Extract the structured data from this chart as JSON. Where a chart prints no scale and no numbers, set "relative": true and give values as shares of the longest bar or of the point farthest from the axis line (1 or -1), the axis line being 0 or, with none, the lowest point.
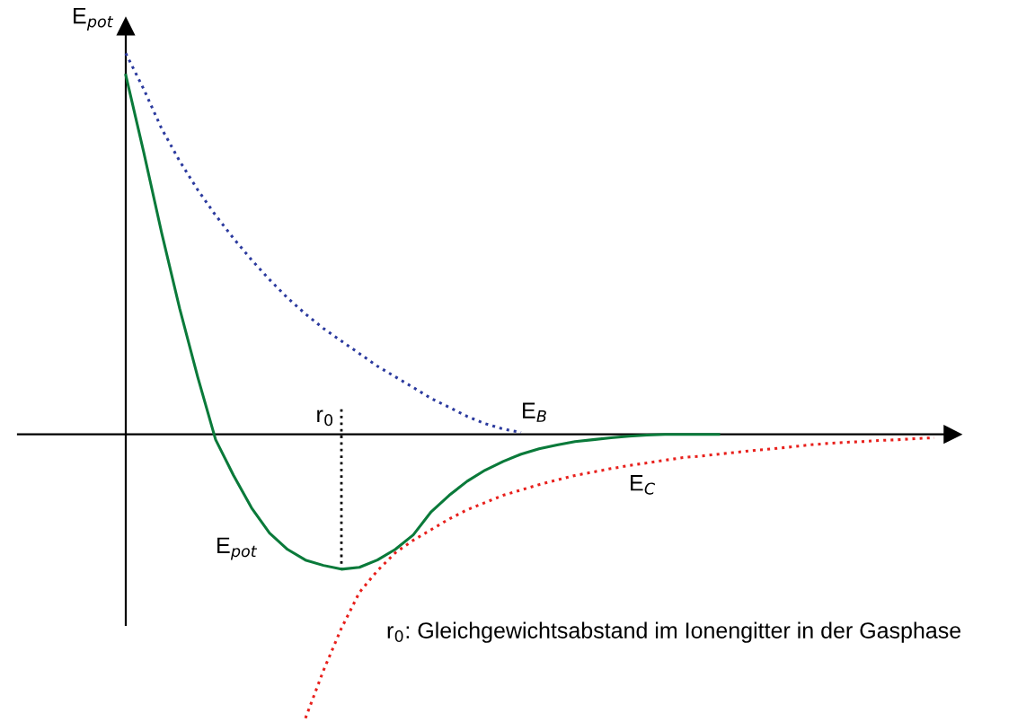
{
  "chart_data": {
    "type": "line",
    "relative": true,
    "ylabel": "E$_{pot}$",
    "categories": [
      null,
      null,
      null,
      null,
      null,
      null,
      null,
      null,
      null,
      null,
      null,
      null,
      null,
      null,
      null,
      null,
      null,
      null,
      null,
      null,
      null,
      null,
      null,
      null,
      null,
      null,
      null,
      null,
      null,
      null,
      null,
      null,
      null,
      null,
      null,
      null,
      null,
      null,
      null,
      null,
      null,
      null,
      null,
      null,
      null,
      null
    ],
    "series": [
      {
        "name": "E$_{B}$",
        "color": "#2b3a9e",
        "line_style": "dotted",
        "values": [
          1.0,
          0.906,
          0.802,
          0.717,
          0.642,
          0.575,
          0.514,
          0.458,
          0.406,
          0.358,
          0.316,
          0.278,
          0.245,
          0.212,
          0.179,
          0.151,
          0.123,
          0.094,
          0.071,
          0.047,
          0.028,
          0.014,
          0.005,
          null,
          null,
          null,
          null,
          null,
          null,
          null,
          null,
          null,
          null,
          null,
          null,
          null,
          null,
          null,
          null,
          null,
          null,
          null,
          null,
          null,
          null,
          null
        ]
      },
      {
        "name": "E$_{pot}$",
        "color": "#0a7a3a",
        "line_style": "solid",
        "values": [
          0.943,
          0.74,
          0.528,
          0.33,
          0.151,
          -0.014,
          -0.108,
          -0.193,
          -0.259,
          -0.302,
          -0.33,
          -0.344,
          -0.354,
          -0.349,
          -0.33,
          -0.302,
          -0.264,
          -0.203,
          -0.16,
          -0.123,
          -0.094,
          -0.071,
          -0.052,
          -0.038,
          -0.028,
          -0.019,
          -0.014,
          -0.009,
          -0.005,
          -0.002,
          0,
          0,
          0,
          0,
          null,
          null,
          null,
          null,
          null,
          null,
          null,
          null,
          null,
          null,
          null,
          null
        ]
      },
      {
        "name": "E$_{C}$",
        "color": "#e8201c",
        "line_style": "dotted",
        "values": [
          null,
          null,
          null,
          null,
          null,
          null,
          null,
          null,
          null,
          null,
          -0.745,
          -0.62,
          -0.509,
          -0.415,
          -0.358,
          -0.311,
          -0.278,
          -0.25,
          -0.222,
          -0.198,
          -0.179,
          -0.16,
          -0.146,
          -0.132,
          -0.12,
          -0.108,
          -0.099,
          -0.09,
          -0.082,
          -0.075,
          -0.068,
          -0.061,
          -0.057,
          -0.052,
          -0.047,
          -0.042,
          -0.038,
          -0.033,
          -0.028,
          -0.024,
          -0.021,
          -0.019,
          -0.016,
          -0.014,
          -0.011,
          -0.009
        ]
      }
    ],
    "annotations": [
      "r$_{0}$",
      "r$_{0}$: Gleichgewichtsabstand im Ionengitter in der Gasphase"
    ]
  }
}
